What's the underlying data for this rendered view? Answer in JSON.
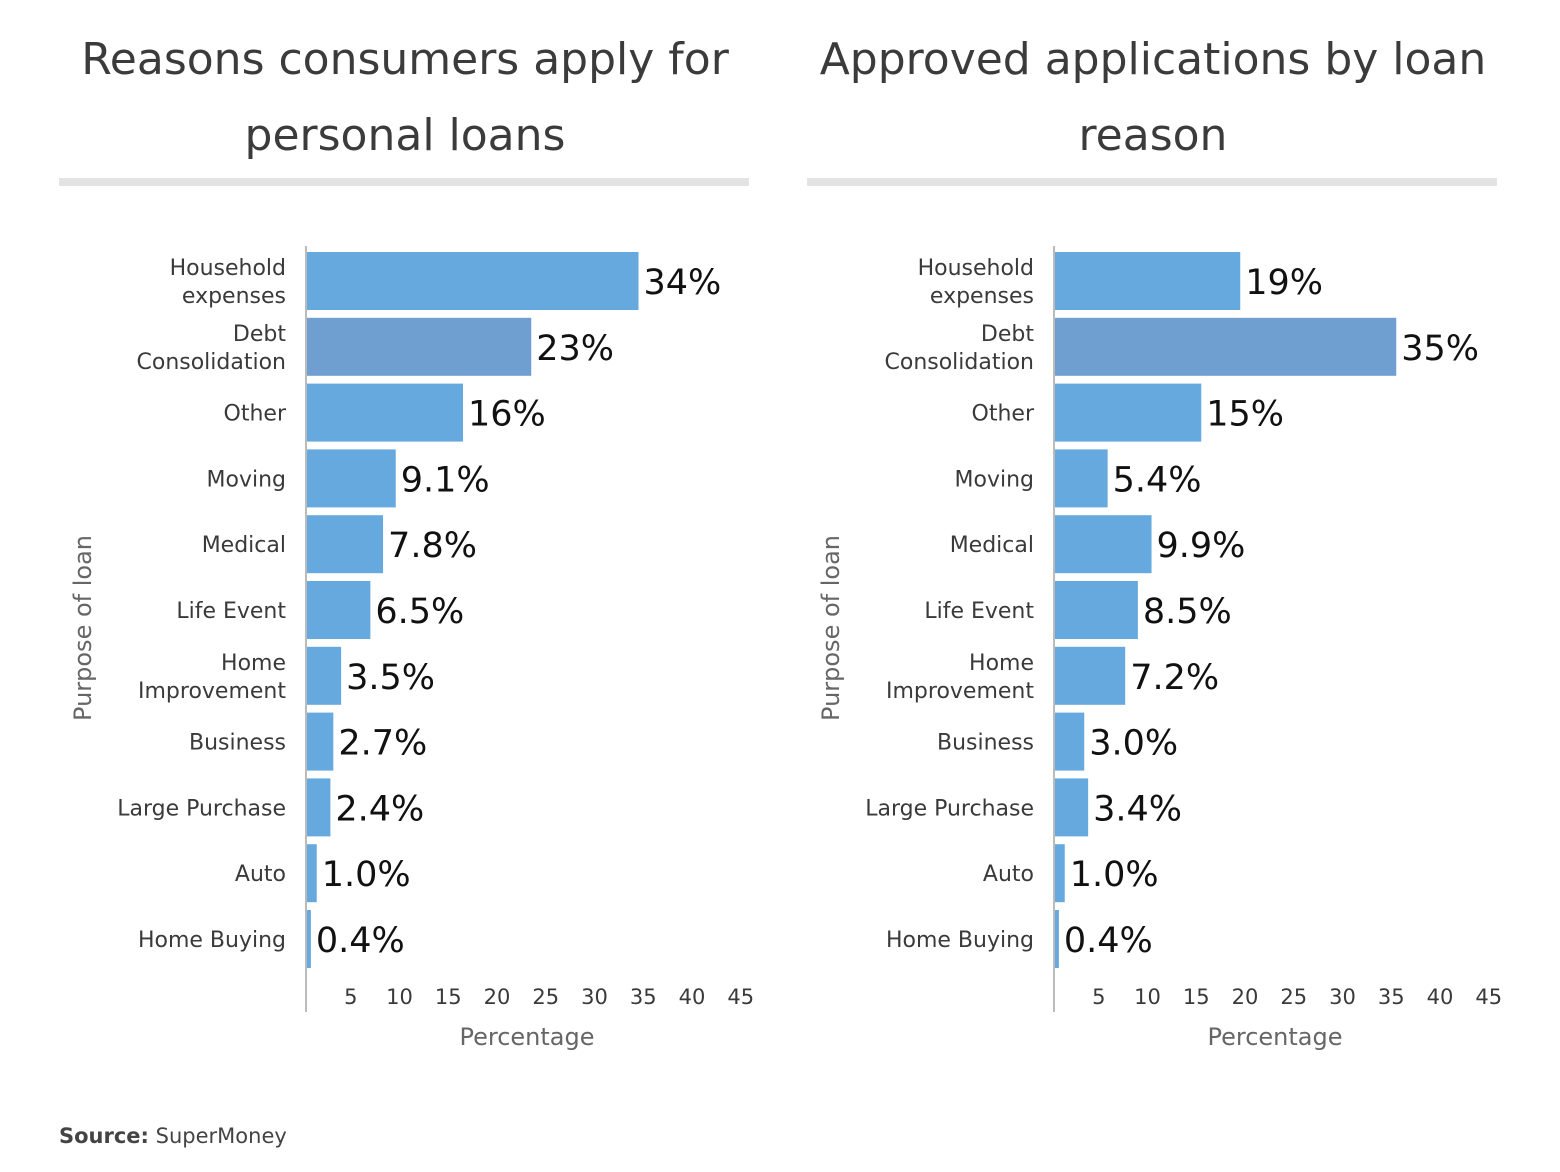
{
  "charts": [
    {
      "title_line1": "Reasons consumers apply for",
      "title_line2": "personal loans"
    },
    {
      "title_line1": "Approved applications by loan",
      "title_line2": "reason"
    }
  ],
  "source": {
    "label": "Source:",
    "value": "SuperMoney"
  },
  "colors": {
    "bar": "#66a9de",
    "bar_highlight": "#6f9fd1",
    "axis": "#bbbbbb",
    "text": "#3a3a3a"
  },
  "chart_data": [
    {
      "type": "bar",
      "orientation": "horizontal",
      "title": "Reasons consumers apply for personal loans",
      "xlabel": "Percentage",
      "ylabel": "Purpose of loan",
      "xlim": [
        0,
        45
      ],
      "xticks": [
        5,
        10,
        15,
        20,
        25,
        30,
        35,
        40,
        45
      ],
      "categories": [
        [
          "Household",
          "expenses"
        ],
        [
          "Debt",
          "Consolidation"
        ],
        [
          "Other"
        ],
        [
          "Moving"
        ],
        [
          "Medical"
        ],
        [
          "Life Event"
        ],
        [
          "Home",
          "Improvement"
        ],
        [
          "Business"
        ],
        [
          "Large Purchase"
        ],
        [
          "Auto"
        ],
        [
          "Home Buying"
        ]
      ],
      "values": [
        34,
        23,
        16,
        9.1,
        7.8,
        6.5,
        3.5,
        2.7,
        2.4,
        1.0,
        0.4
      ],
      "value_labels": [
        "34%",
        "23%",
        "16%",
        "9.1%",
        "7.8%",
        "6.5%",
        "3.5%",
        "2.7%",
        "2.4%",
        "1.0%",
        "0.4%"
      ],
      "highlight_index": 1,
      "grid": false
    },
    {
      "type": "bar",
      "orientation": "horizontal",
      "title": "Approved applications by loan reason",
      "xlabel": "Percentage",
      "ylabel": "Purpose of loan",
      "xlim": [
        0,
        45
      ],
      "xticks": [
        5,
        10,
        15,
        20,
        25,
        30,
        35,
        40,
        45
      ],
      "categories": [
        [
          "Household",
          "expenses"
        ],
        [
          "Debt",
          "Consolidation"
        ],
        [
          "Other"
        ],
        [
          "Moving"
        ],
        [
          "Medical"
        ],
        [
          "Life Event"
        ],
        [
          "Home",
          "Improvement"
        ],
        [
          "Business"
        ],
        [
          "Large Purchase"
        ],
        [
          "Auto"
        ],
        [
          "Home Buying"
        ]
      ],
      "values": [
        19,
        35,
        15,
        5.4,
        9.9,
        8.5,
        7.2,
        3.0,
        3.4,
        1.0,
        0.4
      ],
      "value_labels": [
        "19%",
        "35%",
        "15%",
        "5.4%",
        "9.9%",
        "8.5%",
        "7.2%",
        "3.0%",
        "3.4%",
        "1.0%",
        "0.4%"
      ],
      "highlight_index": 1,
      "grid": false
    }
  ]
}
